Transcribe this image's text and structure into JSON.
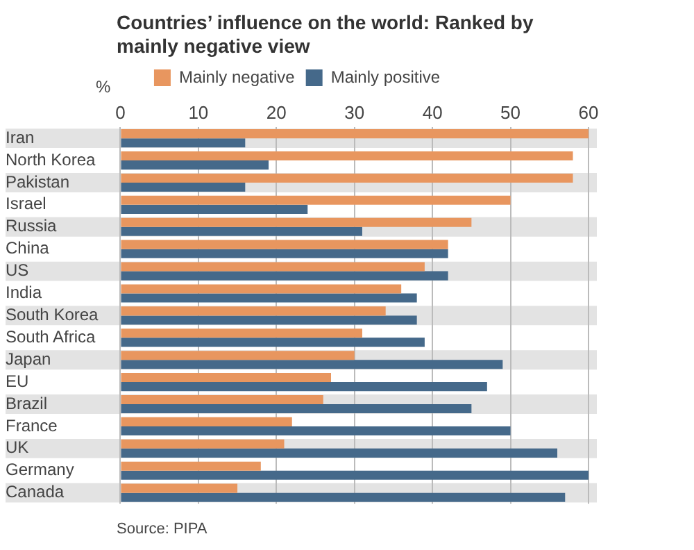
{
  "chart_data": {
    "type": "bar",
    "orientation": "horizontal",
    "title": "Countries’ influence on the world: Ranked by mainly negative view",
    "xlabel": "%",
    "categories": [
      "Iran",
      "North Korea",
      "Pakistan",
      "Israel",
      "Russia",
      "China",
      "US",
      "India",
      "South Korea",
      "South Africa",
      "Japan",
      "EU",
      "Brazil",
      "France",
      "UK",
      "Germany",
      "Canada"
    ],
    "series": [
      {
        "name": "Mainly negative",
        "color": "#e8965f",
        "values": [
          60,
          58,
          58,
          50,
          45,
          42,
          39,
          36,
          34,
          31,
          30,
          27,
          26,
          22,
          21,
          18,
          15
        ]
      },
      {
        "name": "Mainly positive",
        "color": "#45698a",
        "values": [
          16,
          19,
          16,
          24,
          31,
          42,
          42,
          38,
          38,
          39,
          49,
          47,
          45,
          50,
          56,
          60,
          57
        ]
      }
    ],
    "xlim": [
      0,
      60
    ],
    "xticks": [
      0,
      10,
      20,
      30,
      40,
      50,
      60
    ],
    "grid": "x",
    "legend": "top",
    "annotations": [
      "Source: PIPA"
    ]
  }
}
